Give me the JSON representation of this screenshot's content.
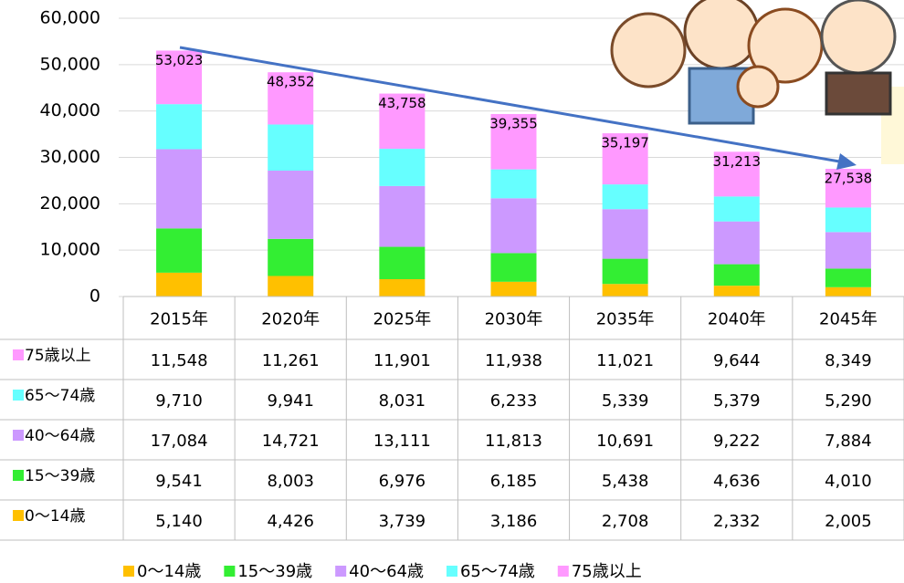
{
  "chart_data": {
    "type": "stacked_bar",
    "categories": [
      "2015年",
      "2020年",
      "2025年",
      "2030年",
      "2035年",
      "2040年",
      "2045年"
    ],
    "series": [
      {
        "name": "0〜14歳",
        "color": "#ffc000",
        "values": [
          5140,
          4426,
          3739,
          3186,
          2708,
          2332,
          2005
        ],
        "value_labels": [
          "5,140",
          "4,426",
          "3,739",
          "3,186",
          "2,708",
          "2,332",
          "2,005"
        ]
      },
      {
        "name": "15〜39歳",
        "color": "#33ee33",
        "values": [
          9541,
          8003,
          6976,
          6185,
          5438,
          4636,
          4010
        ],
        "value_labels": [
          "9,541",
          "8,003",
          "6,976",
          "6,185",
          "5,438",
          "4,636",
          "4,010"
        ]
      },
      {
        "name": "40〜64歳",
        "color": "#cc99ff",
        "values": [
          17084,
          14721,
          13111,
          11813,
          10691,
          9222,
          7884
        ],
        "value_labels": [
          "17,084",
          "14,721",
          "13,111",
          "11,813",
          "10,691",
          "9,222",
          "7,884"
        ]
      },
      {
        "name": "65〜74歳",
        "color": "#66ffff",
        "values": [
          9710,
          9941,
          8031,
          6233,
          5339,
          5379,
          5290
        ],
        "value_labels": [
          "9,710",
          "9,941",
          "8,031",
          "6,233",
          "5,339",
          "5,379",
          "5,290"
        ]
      },
      {
        "name": "75歳以上",
        "color": "#ff99ff",
        "values": [
          11548,
          11261,
          11901,
          11938,
          11021,
          9644,
          8349
        ],
        "value_labels": [
          "11,548",
          "11,261",
          "11,901",
          "11,938",
          "11,021",
          "9,644",
          "8,349"
        ]
      }
    ],
    "totals": {
      "values": [
        53023,
        48352,
        43758,
        39355,
        35197,
        31213,
        27538
      ],
      "value_labels": [
        "53,023",
        "48,352",
        "43,758",
        "39,355",
        "35,197",
        "31,213",
        "27,538"
      ]
    },
    "ylim": [
      0,
      60000
    ],
    "yticks": [
      0,
      {
        "value": 10000,
        "label": "10,000"
      },
      {
        "value": 20000,
        "label": "20,000"
      },
      {
        "value": 30000,
        "label": "30,000"
      },
      {
        "value": 40000,
        "label": "40,000"
      },
      {
        "value": 50000,
        "label": "50,000"
      },
      {
        "value": 60000,
        "label": "60,000"
      }
    ],
    "grid": true
  }
}
